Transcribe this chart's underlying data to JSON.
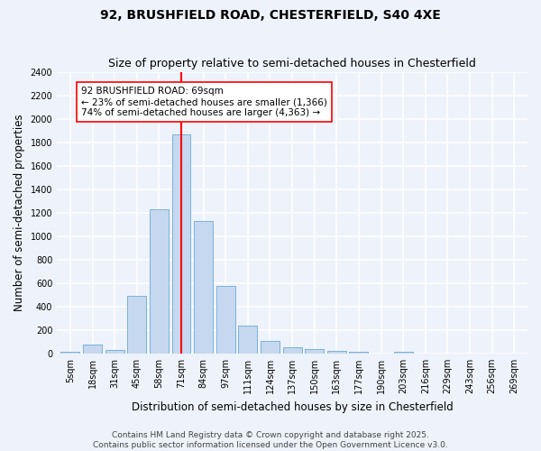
{
  "title1": "92, BRUSHFIELD ROAD, CHESTERFIELD, S40 4XE",
  "title2": "Size of property relative to semi-detached houses in Chesterfield",
  "xlabel": "Distribution of semi-detached houses by size in Chesterfield",
  "ylabel": "Number of semi-detached properties",
  "bar_labels": [
    "5sqm",
    "18sqm",
    "31sqm",
    "45sqm",
    "58sqm",
    "71sqm",
    "84sqm",
    "97sqm",
    "111sqm",
    "124sqm",
    "137sqm",
    "150sqm",
    "163sqm",
    "177sqm",
    "190sqm",
    "203sqm",
    "216sqm",
    "229sqm",
    "243sqm",
    "256sqm",
    "269sqm"
  ],
  "bar_values": [
    15,
    75,
    30,
    490,
    1230,
    1870,
    1130,
    575,
    240,
    105,
    55,
    35,
    20,
    15,
    0,
    15,
    0,
    0,
    0,
    0,
    0
  ],
  "bar_color": "#c5d8f0",
  "bar_edge_color": "#6aaad4",
  "vline_x_index": 5,
  "vline_color": "red",
  "annotation_text": "92 BRUSHFIELD ROAD: 69sqm\n← 23% of semi-detached houses are smaller (1,366)\n74% of semi-detached houses are larger (4,363) →",
  "annotation_box_color": "white",
  "annotation_box_edge_color": "red",
  "ylim": [
    0,
    2400
  ],
  "yticks": [
    0,
    200,
    400,
    600,
    800,
    1000,
    1200,
    1400,
    1600,
    1800,
    2000,
    2200,
    2400
  ],
  "footer": "Contains HM Land Registry data © Crown copyright and database right 2025.\nContains public sector information licensed under the Open Government Licence v3.0.",
  "bg_color": "#eef2fb",
  "grid_color": "white",
  "title_fontsize": 10,
  "subtitle_fontsize": 9,
  "label_fontsize": 8.5,
  "tick_fontsize": 7,
  "footer_fontsize": 6.5,
  "annot_fontsize": 7.5
}
